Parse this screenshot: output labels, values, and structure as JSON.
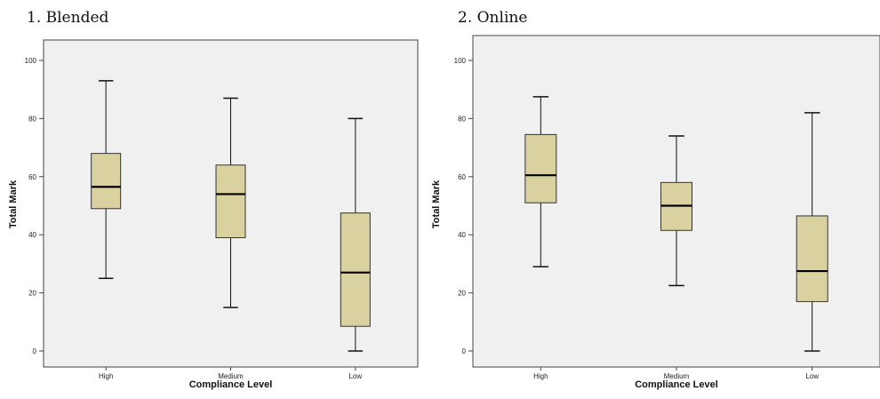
{
  "chart_data": [
    {
      "type": "box",
      "title": "1.  Blended",
      "xlabel": "Compliance Level",
      "ylabel": "Total Mark",
      "categories": [
        "High",
        "Medium",
        "Low"
      ],
      "ylim": [
        0,
        100
      ],
      "yticks": [
        0,
        20,
        40,
        60,
        80,
        100
      ],
      "boxes": [
        {
          "category": "High",
          "min": 25,
          "q1": 49,
          "median": 56.5,
          "q3": 68,
          "max": 93
        },
        {
          "category": "Medium",
          "min": 15,
          "q1": 39,
          "median": 54,
          "q3": 64,
          "max": 87
        },
        {
          "category": "Low",
          "min": 0,
          "q1": 8.5,
          "median": 27,
          "q3": 47.5,
          "max": 80
        }
      ],
      "box_color": "#d9d2a0",
      "background": "#f0f0f0"
    },
    {
      "type": "box",
      "title": "2. Online",
      "xlabel": "Compliance Level",
      "ylabel": "Total Mark",
      "categories": [
        "High",
        "Medium",
        "Low"
      ],
      "ylim": [
        0,
        100
      ],
      "yticks": [
        0,
        20,
        40,
        60,
        80,
        100
      ],
      "boxes": [
        {
          "category": "High",
          "min": 29,
          "q1": 51,
          "median": 60.5,
          "q3": 74.5,
          "max": 87.5
        },
        {
          "category": "Medium",
          "min": 22.5,
          "q1": 41.5,
          "median": 50,
          "q3": 58,
          "max": 74
        },
        {
          "category": "Low",
          "min": 0,
          "q1": 17,
          "median": 27.5,
          "q3": 46.5,
          "max": 82
        }
      ],
      "box_color": "#d9d2a0",
      "background": "#f0f0f0"
    }
  ]
}
